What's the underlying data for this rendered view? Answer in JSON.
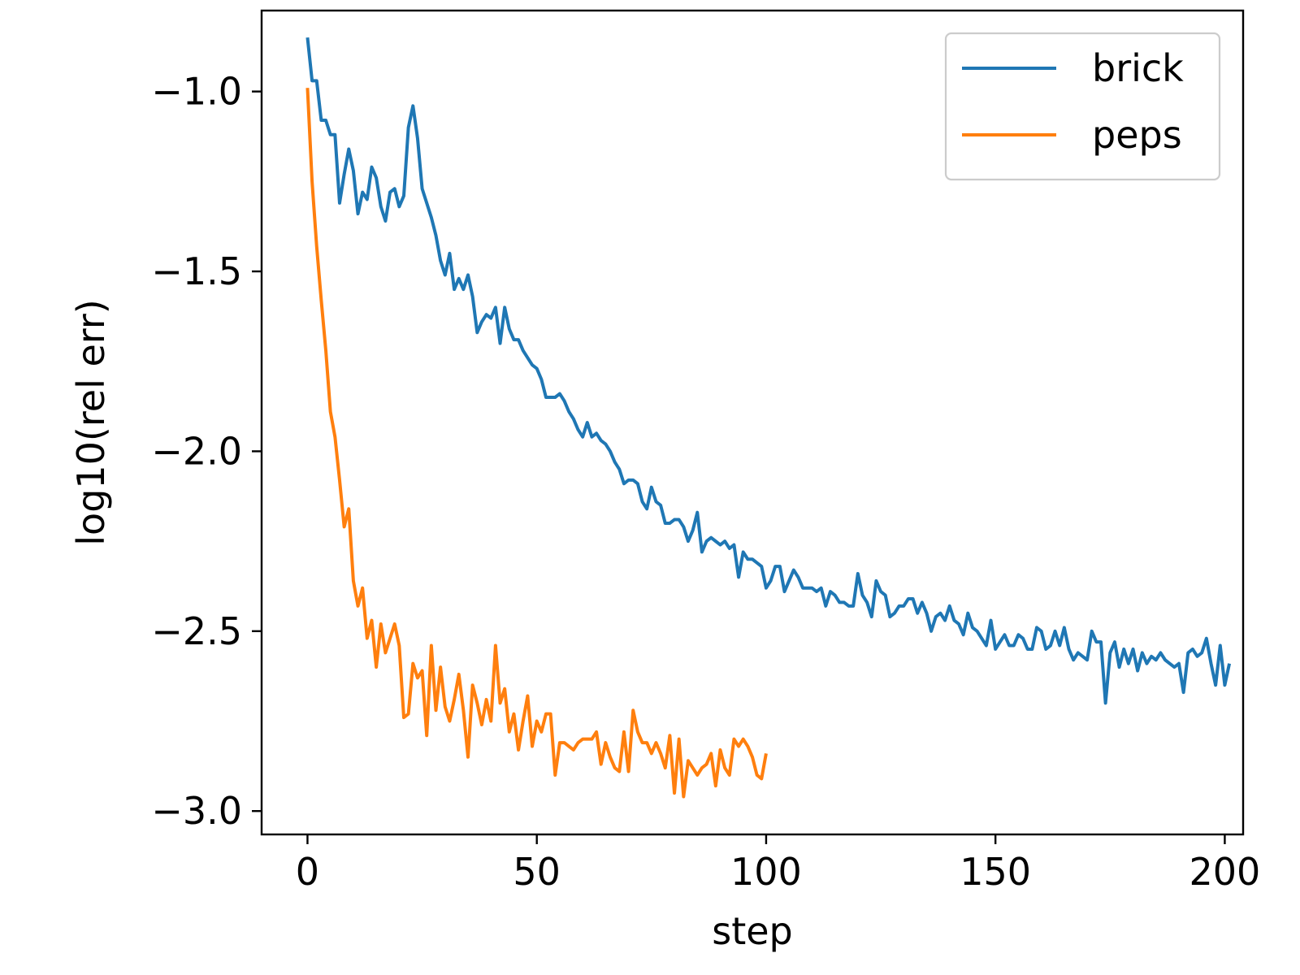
{
  "chart_data": {
    "type": "line",
    "title": "",
    "xlabel": "step",
    "ylabel": "log10(rel err)",
    "xlim": [
      -10,
      204
    ],
    "ylim": [
      -3.065,
      -0.775
    ],
    "x_ticks": [
      0,
      50,
      100,
      150,
      200
    ],
    "y_ticks": [
      -3.0,
      -2.5,
      -2.0,
      -1.5,
      -1.0
    ],
    "x_tick_labels": [
      "0",
      "50",
      "100",
      "150",
      "200"
    ],
    "y_tick_labels": [
      "−3.0",
      "−2.5",
      "−2.0",
      "−1.5",
      "−1.0"
    ],
    "grid": false,
    "legend_position": "top-right",
    "series": [
      {
        "name": "brick",
        "color": "#1f77b4",
        "x_start": 0,
        "values": [
          -0.85,
          -0.97,
          -0.97,
          -1.08,
          -1.08,
          -1.12,
          -1.12,
          -1.31,
          -1.23,
          -1.16,
          -1.22,
          -1.34,
          -1.28,
          -1.3,
          -1.21,
          -1.24,
          -1.32,
          -1.36,
          -1.28,
          -1.27,
          -1.32,
          -1.29,
          -1.1,
          -1.04,
          -1.13,
          -1.27,
          -1.31,
          -1.35,
          -1.4,
          -1.47,
          -1.51,
          -1.45,
          -1.55,
          -1.52,
          -1.55,
          -1.51,
          -1.57,
          -1.67,
          -1.64,
          -1.62,
          -1.63,
          -1.6,
          -1.7,
          -1.6,
          -1.66,
          -1.69,
          -1.69,
          -1.72,
          -1.74,
          -1.76,
          -1.77,
          -1.8,
          -1.85,
          -1.85,
          -1.85,
          -1.84,
          -1.86,
          -1.89,
          -1.91,
          -1.94,
          -1.96,
          -1.92,
          -1.96,
          -1.95,
          -1.97,
          -1.98,
          -2.0,
          -2.03,
          -2.05,
          -2.09,
          -2.08,
          -2.08,
          -2.09,
          -2.14,
          -2.16,
          -2.1,
          -2.14,
          -2.15,
          -2.2,
          -2.2,
          -2.19,
          -2.19,
          -2.21,
          -2.25,
          -2.22,
          -2.17,
          -2.28,
          -2.25,
          -2.24,
          -2.25,
          -2.26,
          -2.25,
          -2.27,
          -2.26,
          -2.35,
          -2.28,
          -2.3,
          -2.3,
          -2.31,
          -2.32,
          -2.38,
          -2.36,
          -2.32,
          -2.32,
          -2.39,
          -2.36,
          -2.33,
          -2.35,
          -2.38,
          -2.38,
          -2.38,
          -2.39,
          -2.38,
          -2.43,
          -2.39,
          -2.4,
          -2.42,
          -2.42,
          -2.43,
          -2.43,
          -2.34,
          -2.4,
          -2.42,
          -2.46,
          -2.36,
          -2.39,
          -2.4,
          -2.46,
          -2.45,
          -2.43,
          -2.43,
          -2.41,
          -2.41,
          -2.45,
          -2.42,
          -2.45,
          -2.5,
          -2.46,
          -2.45,
          -2.47,
          -2.43,
          -2.47,
          -2.48,
          -2.51,
          -2.45,
          -2.49,
          -2.5,
          -2.52,
          -2.54,
          -2.47,
          -2.55,
          -2.53,
          -2.51,
          -2.54,
          -2.54,
          -2.51,
          -2.52,
          -2.55,
          -2.55,
          -2.49,
          -2.5,
          -2.55,
          -2.54,
          -2.5,
          -2.54,
          -2.49,
          -2.55,
          -2.58,
          -2.56,
          -2.57,
          -2.58,
          -2.5,
          -2.53,
          -2.53,
          -2.7,
          -2.56,
          -2.53,
          -2.6,
          -2.55,
          -2.59,
          -2.55,
          -2.61,
          -2.56,
          -2.59,
          -2.57,
          -2.58,
          -2.56,
          -2.58,
          -2.59,
          -2.6,
          -2.59,
          -2.67,
          -2.56,
          -2.55,
          -2.57,
          -2.56,
          -2.52,
          -2.59,
          -2.65,
          -2.54,
          -2.65,
          -2.59
        ]
      },
      {
        "name": "peps",
        "color": "#ff7f0e",
        "x_start": 0,
        "values": [
          -0.99,
          -1.25,
          -1.43,
          -1.58,
          -1.72,
          -1.89,
          -1.96,
          -2.08,
          -2.21,
          -2.16,
          -2.36,
          -2.43,
          -2.38,
          -2.52,
          -2.47,
          -2.6,
          -2.48,
          -2.56,
          -2.52,
          -2.48,
          -2.54,
          -2.74,
          -2.73,
          -2.59,
          -2.63,
          -2.61,
          -2.79,
          -2.54,
          -2.72,
          -2.6,
          -2.71,
          -2.75,
          -2.69,
          -2.62,
          -2.72,
          -2.85,
          -2.65,
          -2.7,
          -2.76,
          -2.69,
          -2.75,
          -2.54,
          -2.7,
          -2.66,
          -2.78,
          -2.73,
          -2.83,
          -2.75,
          -2.68,
          -2.82,
          -2.75,
          -2.78,
          -2.73,
          -2.73,
          -2.9,
          -2.81,
          -2.81,
          -2.82,
          -2.83,
          -2.81,
          -2.8,
          -2.8,
          -2.8,
          -2.78,
          -2.87,
          -2.81,
          -2.85,
          -2.88,
          -2.89,
          -2.78,
          -2.89,
          -2.72,
          -2.78,
          -2.81,
          -2.81,
          -2.84,
          -2.81,
          -2.84,
          -2.88,
          -2.79,
          -2.95,
          -2.8,
          -2.96,
          -2.86,
          -2.88,
          -2.9,
          -2.88,
          -2.87,
          -2.84,
          -2.93,
          -2.83,
          -2.88,
          -2.9,
          -2.8,
          -2.82,
          -2.8,
          -2.82,
          -2.85,
          -2.9,
          -2.91,
          -2.84
        ]
      }
    ]
  }
}
